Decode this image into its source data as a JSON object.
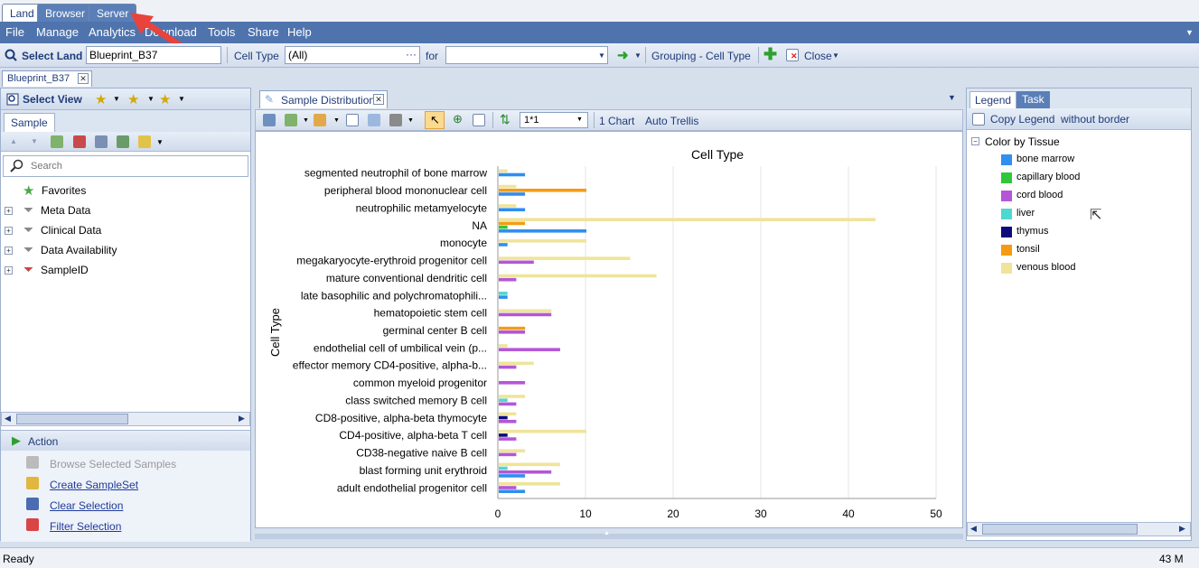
{
  "top_tabs": [
    "Land",
    "Browser",
    "Server"
  ],
  "menu": [
    "File",
    "Manage",
    "Analytics",
    "Download",
    "Tools",
    "Share",
    "Help"
  ],
  "toolbar": {
    "select_land_label": "Select Land",
    "land_value": "Blueprint_B37",
    "celltype_label": "Cell Type",
    "celltype_value": "(All)",
    "dots": "···",
    "for_label": "for",
    "for_value": "",
    "grouping_label": "Grouping - Cell Type",
    "close_label": "Close"
  },
  "doc_tab": "Blueprint_B37",
  "left": {
    "select_view": "Select View",
    "sample_tab": "Sample",
    "search_placeholder": "Search",
    "tree": [
      "Favorites",
      "Meta Data",
      "Clinical Data",
      "Data Availability",
      "SampleID"
    ],
    "action_header": "Action",
    "actions": [
      "Browse Selected Samples",
      "Create SampleSet",
      "Clear Selection",
      "Filter Selection"
    ]
  },
  "center": {
    "tab_title": "Sample Distribution",
    "zoom_value": "1*1",
    "chart_label": "1 Chart",
    "auto_trellis": "Auto Trellis"
  },
  "right": {
    "tabs": [
      "Legend",
      "Task"
    ],
    "copy_legend": "Copy Legend",
    "without_border": "without border",
    "group_title": "Color by Tissue",
    "items": [
      {
        "label": "bone marrow",
        "color": "#2f8ef0"
      },
      {
        "label": "capillary blood",
        "color": "#2ec83a"
      },
      {
        "label": "cord blood",
        "color": "#b456d8"
      },
      {
        "label": "liver",
        "color": "#4ed8d0"
      },
      {
        "label": "thymus",
        "color": "#0d0a7a"
      },
      {
        "label": "tonsil",
        "color": "#f59b12"
      },
      {
        "label": "venous blood",
        "color": "#efe49a"
      }
    ]
  },
  "status": {
    "left": "Ready",
    "right": "43 M"
  },
  "chart_data": {
    "type": "bar",
    "orientation": "horizontal",
    "title": "Cell Type",
    "ylabel": "Cell Type",
    "xlabel": "",
    "xlim": [
      0,
      50
    ],
    "xticks": [
      0,
      10,
      20,
      30,
      40,
      50
    ],
    "grid": true,
    "categories": [
      "segmented neutrophil of bone marrow",
      "peripheral blood mononuclear cell",
      "neutrophilic metamyelocyte",
      "NA",
      "monocyte",
      "megakaryocyte-erythroid progenitor cell",
      "mature conventional dendritic cell",
      "late basophilic and polychromatophili...",
      "hematopoietic stem cell",
      "germinal center B cell",
      "endothelial cell of umbilical vein (p...",
      "effector memory CD4-positive, alpha-b...",
      "common myeloid progenitor",
      "class switched memory B cell",
      "CD8-positive, alpha-beta thymocyte",
      "CD4-positive, alpha-beta T cell",
      "CD38-negative naive B cell",
      "blast forming unit erythroid",
      "adult endothelial progenitor cell"
    ],
    "series": [
      {
        "name": "bone marrow",
        "color": "#2f8ef0",
        "values": [
          3,
          3,
          3,
          10,
          1,
          0,
          0,
          1,
          0,
          0,
          0,
          0,
          0,
          0,
          0,
          0,
          0,
          3,
          3
        ]
      },
      {
        "name": "capillary blood",
        "color": "#2ec83a",
        "values": [
          0,
          0,
          0,
          1,
          0,
          0,
          0,
          0,
          0,
          0,
          0,
          0,
          0,
          0,
          0,
          0,
          0,
          0,
          0
        ]
      },
      {
        "name": "cord blood",
        "color": "#b456d8",
        "values": [
          0,
          0,
          0,
          0,
          0,
          4,
          2,
          0,
          6,
          3,
          7,
          2,
          3,
          2,
          2,
          2,
          2,
          6,
          2
        ]
      },
      {
        "name": "liver",
        "color": "#4ed8d0",
        "values": [
          0,
          0,
          0,
          0,
          0,
          0,
          0,
          1,
          0,
          0,
          0,
          0,
          0,
          1,
          0,
          0,
          0,
          1,
          0
        ]
      },
      {
        "name": "thymus",
        "color": "#0d0a7a",
        "values": [
          0,
          0,
          0,
          0,
          0,
          0,
          0,
          0,
          0,
          0,
          0,
          0,
          0,
          0,
          1,
          1,
          0,
          0,
          0
        ]
      },
      {
        "name": "tonsil",
        "color": "#f59b12",
        "values": [
          0,
          10,
          0,
          3,
          0,
          0,
          0,
          0,
          0,
          3,
          0,
          0,
          0,
          0,
          0,
          0,
          0,
          0,
          0
        ]
      },
      {
        "name": "venous blood",
        "color": "#efe49a",
        "values": [
          1,
          2,
          2,
          43,
          10,
          15,
          18,
          0,
          6,
          0,
          1,
          4,
          0,
          3,
          2,
          10,
          3,
          7,
          7
        ]
      }
    ]
  }
}
